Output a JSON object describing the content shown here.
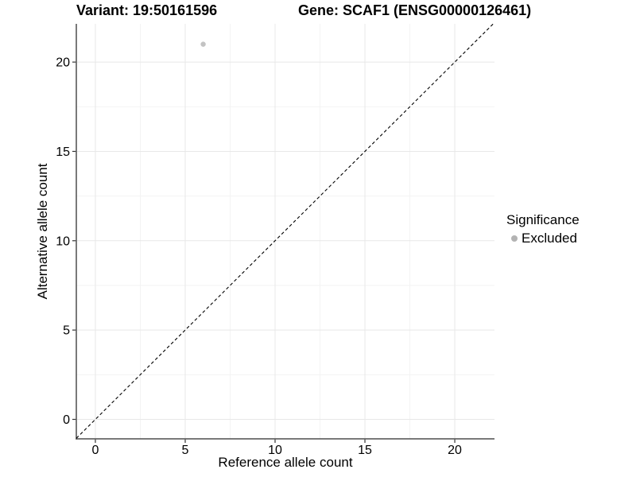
{
  "chart_data": {
    "type": "scatter",
    "title_left": "Variant: 19:50161596",
    "title_right": "Gene: SCAF1 (ENSG00000126461)",
    "xlabel": "Reference allele count",
    "ylabel": "Alternative allele count",
    "xlim": [
      -1.06,
      22.21
    ],
    "ylim": [
      -1.09,
      22.14
    ],
    "xticks": [
      0,
      5,
      10,
      15,
      20
    ],
    "yticks": [
      0,
      5,
      10,
      15,
      20
    ],
    "xticks_minor": [
      2.5,
      7.5,
      12.5,
      17.5
    ],
    "yticks_minor": [
      2.5,
      7.5,
      12.5,
      17.5
    ],
    "grid": "major+minor",
    "identity_line": {
      "equation": "y = x",
      "style": "dashed",
      "color": "#000000"
    },
    "series": [
      {
        "name": "Excluded",
        "color": "#c3c3c3",
        "points": [
          {
            "x": 6,
            "y": 21
          }
        ]
      }
    ],
    "legend": {
      "title": "Significance",
      "position": "right",
      "items": [
        {
          "label": "Excluded",
          "color": "#b3b3b3"
        }
      ]
    },
    "colors": {
      "grid_major": "#e8e8e8",
      "grid_minor": "#f3f3f3",
      "axis_line": "#4d4d4d",
      "tick": "#333333",
      "text": "#000000",
      "background": "#ffffff"
    }
  }
}
